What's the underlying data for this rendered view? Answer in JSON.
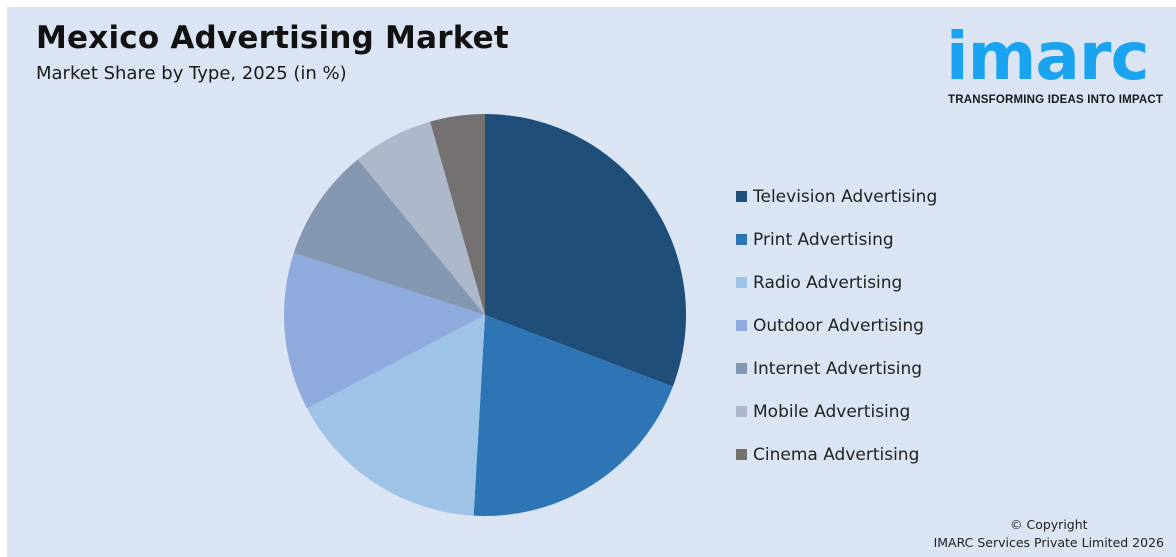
{
  "header": {
    "title": "Mexico Advertising Market",
    "subtitle": "Market Share by Type, 2025 (in %)"
  },
  "logo": {
    "wordmark": "imarc",
    "tagline": "TRANSFORMING IDEAS INTO IMPACT",
    "color": "#1aa3ef"
  },
  "footer": {
    "line1": "© Copyright",
    "line2": "IMARC Services Private Limited 2026"
  },
  "chart_data": {
    "type": "pie",
    "title": "Mexico Advertising Market",
    "subtitle": "Market Share by Type, 2025 (in %)",
    "legend_position": "right",
    "start_angle_deg": 0,
    "direction": "clockwise",
    "categories": [
      "Television Advertising",
      "Print Advertising",
      "Radio Advertising",
      "Outdoor Advertising",
      "Internet Advertising",
      "Mobile Advertising",
      "Cinema Advertising"
    ],
    "values": [
      30.8,
      20.1,
      16.4,
      12.7,
      9.1,
      6.5,
      4.4
    ],
    "colors": [
      "#1f4e79",
      "#2e75b6",
      "#9dc3e6",
      "#8faadc",
      "#8497b0",
      "#adb9ca",
      "#767171"
    ]
  }
}
